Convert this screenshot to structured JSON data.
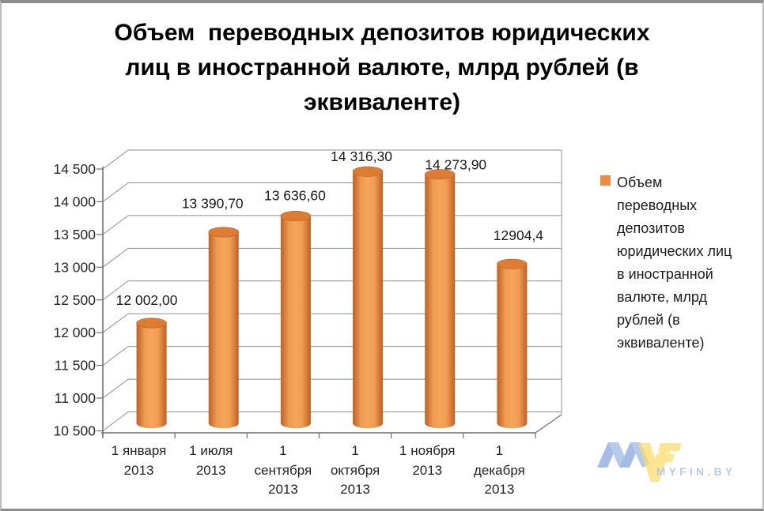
{
  "title": {
    "lines": [
      "Объем  переводных депозитов юридических",
      "лиц в иностранной валюте, млрд рублей (в",
      "эквиваленте)"
    ]
  },
  "legend": {
    "series_label": "Объем переводных депозитов юридических лиц в иностранной валюте, млрд рублей (в эквиваленте)",
    "lines": [
      "Объем",
      "переводных",
      "депозитов",
      "юридических лиц",
      "в иностранной",
      "валюте, млрд",
      "рублей (в",
      "эквиваленте)"
    ]
  },
  "watermark": {
    "myfin": "MYFIN",
    "dot": ".",
    "by": "BY"
  },
  "colors": {
    "bar_edge": "#bd6127",
    "bar_mid": "#f5a55c",
    "bar_bright": "#f09c52",
    "bar_top": "#dd7d34",
    "bar_top_stroke": "#b3602a",
    "legend_swatch": "#ee8c44",
    "gridline": "#8f8f8f",
    "axis": "#6f6f6f",
    "label_text": "#1a1a1a",
    "tick_text": "#262626"
  },
  "chart_data": {
    "type": "bar",
    "subtype": "3d-cylinder",
    "title": "Объем переводных депозитов юридических лиц в иностранной валюте, млрд рублей (в эквиваленте)",
    "series": [
      {
        "name": "Объем переводных депозитов юридических лиц в иностранной валюте, млрд рублей (в эквиваленте)",
        "values": [
          12002.0,
          13390.7,
          13636.6,
          14316.3,
          14273.9,
          12904.4
        ]
      }
    ],
    "categories": [
      "1 января 2013",
      "1 июля 2013",
      "1 сентября 2013",
      "1 октября 2013",
      "1 ноября 2013",
      "1 декабря 2013"
    ],
    "category_label_lines": [
      [
        "1 января",
        "2013"
      ],
      [
        "1 июля",
        "2013"
      ],
      [
        "1",
        "сентября",
        "2013"
      ],
      [
        "1",
        "октября",
        "2013"
      ],
      [
        "1 ноября",
        "2013"
      ],
      [
        "1",
        "декабря",
        "2013"
      ]
    ],
    "value_labels": [
      "12 002,00",
      "13 390,70",
      "13 636,60",
      "14 316,30",
      "14 273,90",
      "12904,4"
    ],
    "y_ticks": [
      10500,
      11000,
      11500,
      12000,
      12500,
      13000,
      13500,
      14000,
      14500
    ],
    "y_tick_labels": [
      "10 500",
      "11 000",
      "11 500",
      "12 000",
      "12 500",
      "13 000",
      "13 500",
      "14 000",
      "14 500"
    ],
    "ylim": [
      10500,
      14500
    ],
    "xlabel": "",
    "ylabel": "",
    "grid": true,
    "legend_position": "right"
  }
}
